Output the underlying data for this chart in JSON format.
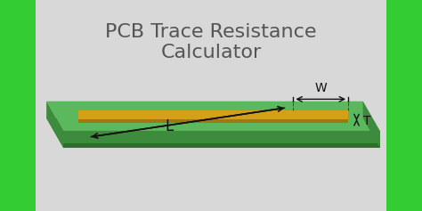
{
  "title_line1": "PCB Trace Resistance",
  "title_line2": "Calculator",
  "title_fontsize": 16,
  "title_color": "#555555",
  "bg_color": "#d8d8d8",
  "border_color": "#33cc33",
  "pcb_top_color": "#5cb85c",
  "pcb_side_color": "#3d8b3d",
  "pcb_bottom_color": "#2d6e2d",
  "trace_top_color": "#d4a017",
  "trace_side_color": "#a07810",
  "trace_end_color": "#b08820",
  "label_L": "L",
  "label_W": "W",
  "label_T": "T",
  "label_fontsize": 10,
  "label_color": "#111111",
  "arrow_color": "#111111"
}
